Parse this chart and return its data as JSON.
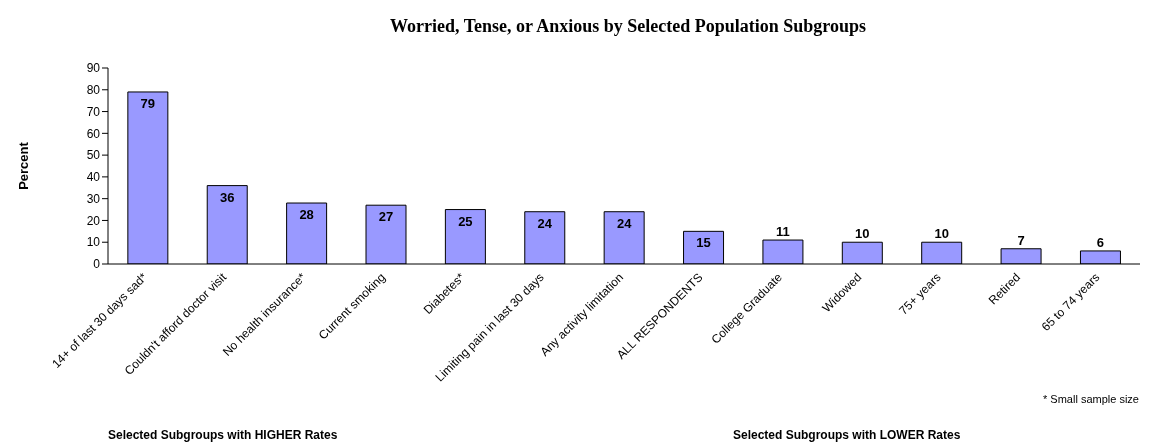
{
  "chart_data": {
    "type": "bar",
    "title": "Worried, Tense, or Anxious by Selected Population Subgroups",
    "ylabel": "Percent",
    "categories": [
      "14+ of last 30 days sad*",
      "Couldn't afford doctor visit",
      "No health insurance*",
      "Current smoking",
      "Diabetes*",
      "Limiting pain in last 30 days",
      "Any activity limitation",
      "ALL RESPONDENTS",
      "College Graduate",
      "Widowed",
      "75+ years",
      "Retired",
      "65 to 74 years"
    ],
    "values": [
      79,
      36,
      28,
      27,
      25,
      24,
      24,
      15,
      11,
      10,
      10,
      7,
      6
    ],
    "color": "#9999ff",
    "ylim": [
      0,
      90
    ],
    "yticks": [
      0,
      10,
      20,
      30,
      40,
      50,
      60,
      70,
      80,
      90
    ],
    "grid": false,
    "legend": false,
    "data_labels": true,
    "annotations": [
      "* Small sample size",
      "Selected Subgroups with HIGHER Rates",
      "Selected Subgroups with LOWER Rates"
    ]
  }
}
